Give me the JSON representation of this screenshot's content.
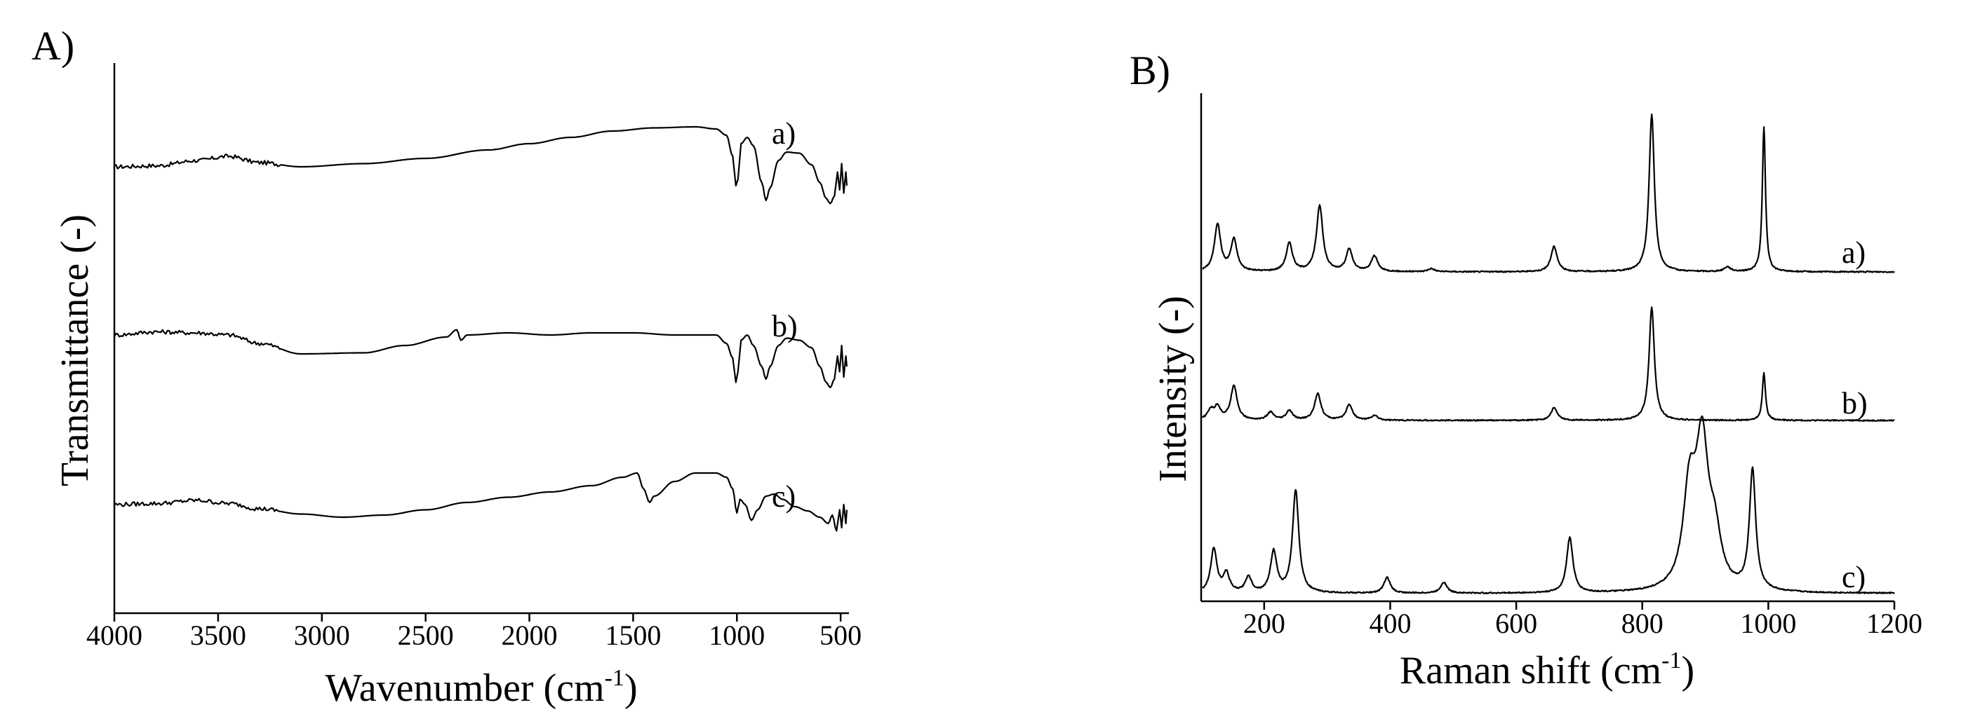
{
  "figure": {
    "chart_data": [
      {
        "panel_label": "A)",
        "type": "line",
        "title": "",
        "xlabel_main": "Wavenumber (cm",
        "xlabel_sup": "-1",
        "xlabel_tail": ")",
        "ylabel": "Transmittance (-)",
        "xlim": [
          4000,
          460
        ],
        "x_reversed": true,
        "xticks": [
          4000,
          3500,
          3000,
          2500,
          2000,
          1500,
          1000,
          500
        ],
        "xtick_labels": [
          "4000",
          "3500",
          "3000",
          "2500",
          "2000",
          "1500",
          "1000",
          "500"
        ],
        "y_ticks_shown": false,
        "series": [
          {
            "name": "a)",
            "baseline": 0.0,
            "points": [
              [
                4000,
                0.0
              ],
              [
                3800,
                0.01
              ],
              [
                3600,
                0.06
              ],
              [
                3450,
                0.1
              ],
              [
                3300,
                0.04
              ],
              [
                3100,
                0.0
              ],
              [
                2800,
                0.03
              ],
              [
                2500,
                0.08
              ],
              [
                2200,
                0.16
              ],
              [
                2000,
                0.22
              ],
              [
                1800,
                0.28
              ],
              [
                1600,
                0.34
              ],
              [
                1400,
                0.37
              ],
              [
                1200,
                0.38
              ],
              [
                1100,
                0.36
              ],
              [
                1050,
                0.3
              ],
              [
                1020,
                0.1
              ],
              [
                1005,
                -0.18
              ],
              [
                995,
                -0.12
              ],
              [
                980,
                0.22
              ],
              [
                950,
                0.28
              ],
              [
                920,
                0.2
              ],
              [
                880,
                -0.15
              ],
              [
                860,
                -0.32
              ],
              [
                840,
                -0.2
              ],
              [
                800,
                0.06
              ],
              [
                760,
                0.14
              ],
              [
                700,
                0.13
              ],
              [
                640,
                0.02
              ],
              [
                600,
                -0.15
              ],
              [
                570,
                -0.3
              ],
              [
                550,
                -0.35
              ],
              [
                530,
                -0.28
              ],
              [
                515,
                -0.05
              ],
              [
                505,
                -0.22
              ],
              [
                495,
                0.03
              ],
              [
                485,
                -0.25
              ],
              [
                475,
                -0.05
              ],
              [
                470,
                -0.18
              ]
            ]
          },
          {
            "name": "b)",
            "baseline": 0.0,
            "points": [
              [
                4000,
                0.0
              ],
              [
                3800,
                0.03
              ],
              [
                3600,
                0.02
              ],
              [
                3450,
                0.0
              ],
              [
                3300,
                -0.08
              ],
              [
                3100,
                -0.18
              ],
              [
                2800,
                -0.17
              ],
              [
                2600,
                -0.1
              ],
              [
                2400,
                -0.02
              ],
              [
                2350,
                0.05
              ],
              [
                2330,
                -0.05
              ],
              [
                2300,
                0.0
              ],
              [
                2100,
                0.02
              ],
              [
                1900,
                0.0
              ],
              [
                1700,
                0.02
              ],
              [
                1500,
                0.02
              ],
              [
                1300,
                0.0
              ],
              [
                1100,
                0.0
              ],
              [
                1050,
                -0.08
              ],
              [
                1020,
                -0.22
              ],
              [
                1005,
                -0.45
              ],
              [
                995,
                -0.35
              ],
              [
                980,
                -0.05
              ],
              [
                950,
                0.0
              ],
              [
                920,
                -0.1
              ],
              [
                880,
                -0.3
              ],
              [
                860,
                -0.42
              ],
              [
                840,
                -0.3
              ],
              [
                800,
                -0.1
              ],
              [
                760,
                -0.03
              ],
              [
                700,
                -0.05
              ],
              [
                640,
                -0.12
              ],
              [
                600,
                -0.3
              ],
              [
                570,
                -0.45
              ],
              [
                550,
                -0.5
              ],
              [
                530,
                -0.42
              ],
              [
                515,
                -0.2
              ],
              [
                505,
                -0.35
              ],
              [
                495,
                -0.1
              ],
              [
                485,
                -0.4
              ],
              [
                475,
                -0.2
              ],
              [
                470,
                -0.3
              ]
            ]
          },
          {
            "name": "c)",
            "baseline": 0.0,
            "points": [
              [
                4000,
                0.0
              ],
              [
                3800,
                0.01
              ],
              [
                3600,
                0.04
              ],
              [
                3450,
                0.01
              ],
              [
                3300,
                -0.04
              ],
              [
                3100,
                -0.09
              ],
              [
                2900,
                -0.12
              ],
              [
                2700,
                -0.1
              ],
              [
                2500,
                -0.05
              ],
              [
                2300,
                0.02
              ],
              [
                2100,
                0.07
              ],
              [
                1900,
                0.12
              ],
              [
                1700,
                0.18
              ],
              [
                1550,
                0.26
              ],
              [
                1480,
                0.3
              ],
              [
                1450,
                0.15
              ],
              [
                1420,
                0.02
              ],
              [
                1400,
                0.08
              ],
              [
                1300,
                0.22
              ],
              [
                1200,
                0.3
              ],
              [
                1100,
                0.3
              ],
              [
                1050,
                0.26
              ],
              [
                1020,
                0.15
              ],
              [
                1000,
                -0.08
              ],
              [
                985,
                0.05
              ],
              [
                960,
                0.0
              ],
              [
                930,
                -0.15
              ],
              [
                900,
                -0.05
              ],
              [
                860,
                0.08
              ],
              [
                820,
                0.1
              ],
              [
                780,
                0.05
              ],
              [
                720,
                -0.02
              ],
              [
                660,
                -0.06
              ],
              [
                600,
                -0.12
              ],
              [
                560,
                -0.18
              ],
              [
                540,
                -0.1
              ],
              [
                520,
                -0.25
              ],
              [
                505,
                -0.05
              ],
              [
                495,
                -0.22
              ],
              [
                485,
                0.0
              ],
              [
                475,
                -0.18
              ],
              [
                470,
                -0.05
              ]
            ]
          }
        ]
      },
      {
        "panel_label": "B)",
        "type": "line",
        "title": "",
        "xlabel_main": "Raman shift (cm",
        "xlabel_sup": "-1",
        "xlabel_tail": ")",
        "ylabel": "Intensity (-)",
        "xlim": [
          100,
          1200
        ],
        "x_reversed": false,
        "xticks": [
          200,
          400,
          600,
          800,
          1000,
          1200
        ],
        "xtick_labels": [
          "200",
          "400",
          "600",
          "800",
          "1000",
          "1200"
        ],
        "y_ticks_shown": false,
        "series": [
          {
            "name": "a)",
            "peaks": [
              [
                126,
                0.3
              ],
              [
                152,
                0.2
              ],
              [
                240,
                0.18
              ],
              [
                288,
                0.42
              ],
              [
                335,
                0.14
              ],
              [
                375,
                0.1
              ],
              [
                465,
                0.02
              ],
              [
                660,
                0.16
              ],
              [
                815,
                1.0
              ],
              [
                935,
                0.03
              ],
              [
                993,
                0.92
              ]
            ]
          },
          {
            "name": "b)",
            "peaks": [
              [
                115,
                0.06
              ],
              [
                126,
                0.08
              ],
              [
                152,
                0.22
              ],
              [
                210,
                0.05
              ],
              [
                240,
                0.06
              ],
              [
                285,
                0.17
              ],
              [
                335,
                0.1
              ],
              [
                375,
                0.03
              ],
              [
                660,
                0.08
              ],
              [
                815,
                0.72
              ],
              [
                993,
                0.3
              ]
            ]
          },
          {
            "name": "c)",
            "peaks": [
              [
                120,
                0.28
              ],
              [
                140,
                0.12
              ],
              [
                175,
                0.1
              ],
              [
                215,
                0.26
              ],
              [
                250,
                0.65
              ],
              [
                395,
                0.1
              ],
              [
                485,
                0.07
              ],
              [
                685,
                0.35
              ],
              [
                875,
                0.6
              ],
              [
                895,
                0.88
              ],
              [
                915,
                0.3
              ],
              [
                975,
                0.76
              ]
            ]
          }
        ]
      }
    ]
  }
}
